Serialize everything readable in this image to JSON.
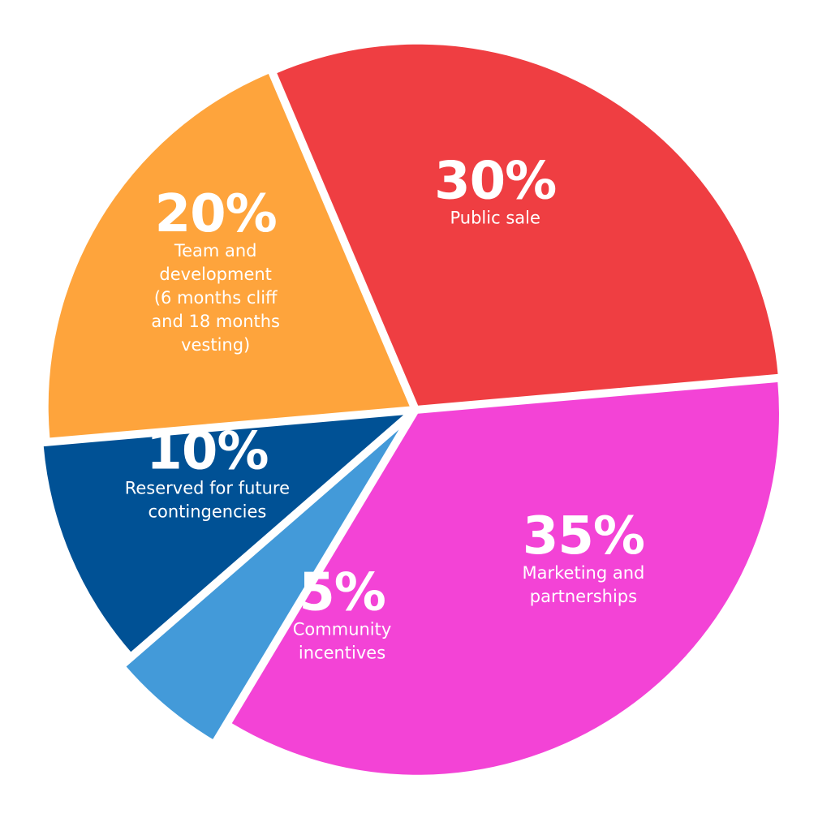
{
  "chart_data": {
    "type": "pie",
    "title": "",
    "legend": "none",
    "slices": [
      {
        "name": "Public sale",
        "value": 30,
        "value_label": "30%",
        "label_lines": [
          "Public sale"
        ],
        "color": "#ef3e42"
      },
      {
        "name": "Marketing and partnerships",
        "value": 35,
        "value_label": "35%",
        "label_lines": [
          "Marketing and",
          "partnerships"
        ],
        "color": "#f343d6"
      },
      {
        "name": "Community incentives",
        "value": 5,
        "value_label": "5%",
        "label_lines": [
          "Community",
          "incentives"
        ],
        "color": "#439ad9"
      },
      {
        "name": "Reserved for future contingencies",
        "value": 10,
        "value_label": "10%",
        "label_lines": [
          "Reserved for future",
          "contingencies"
        ],
        "color": "#005195"
      },
      {
        "name": "Team and development (6 months cliff and 18 months vesting)",
        "value": 20,
        "value_label": "20%",
        "label_lines": [
          "Team and",
          "development",
          "(6 months cliff",
          "and 18 months",
          "vesting)"
        ],
        "color": "#fea43c"
      }
    ]
  }
}
